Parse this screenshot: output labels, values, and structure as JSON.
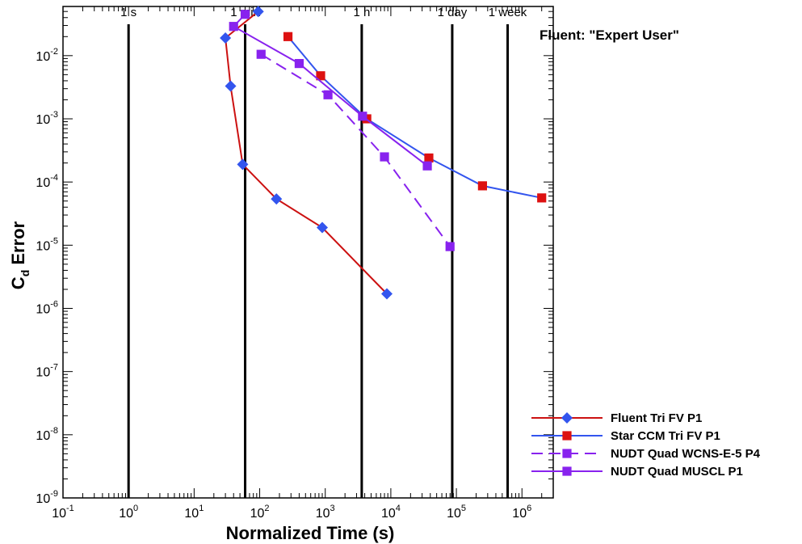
{
  "chart_data": {
    "type": "line",
    "title": "",
    "annotation": "Fluent: \"Expert User\"",
    "xlabel": "Normalized Time (s)",
    "ylabel": "C",
    "ylabel_sub": "d",
    "ylabel_suffix": " Error",
    "x_scale": "log",
    "y_scale": "log",
    "xlim": [
      0.1,
      3000000
    ],
    "ylim": [
      1e-09,
      0.06
    ],
    "x_ticks": [
      {
        "v": 0.1,
        "base": "10",
        "exp": "-1"
      },
      {
        "v": 1,
        "base": "10",
        "exp": "0"
      },
      {
        "v": 10,
        "base": "10",
        "exp": "1"
      },
      {
        "v": 100,
        "base": "10",
        "exp": "2"
      },
      {
        "v": 1000,
        "base": "10",
        "exp": "3"
      },
      {
        "v": 10000,
        "base": "10",
        "exp": "4"
      },
      {
        "v": 100000,
        "base": "10",
        "exp": "5"
      },
      {
        "v": 1000000,
        "base": "10",
        "exp": "6"
      }
    ],
    "y_ticks": [
      {
        "v": 1e-09,
        "base": "10",
        "exp": "-9"
      },
      {
        "v": 1e-08,
        "base": "10",
        "exp": "-8"
      },
      {
        "v": 1e-07,
        "base": "10",
        "exp": "-7"
      },
      {
        "v": 1e-06,
        "base": "10",
        "exp": "-6"
      },
      {
        "v": 1e-05,
        "base": "10",
        "exp": "-5"
      },
      {
        "v": 0.0001,
        "base": "10",
        "exp": "-4"
      },
      {
        "v": 0.001,
        "base": "10",
        "exp": "-3"
      },
      {
        "v": 0.01,
        "base": "10",
        "exp": "-2"
      }
    ],
    "reference_lines": [
      {
        "label": "1 s",
        "x": 1
      },
      {
        "label": "1 min",
        "x": 60
      },
      {
        "label": "1 h",
        "x": 3600
      },
      {
        "label": "1 day",
        "x": 86400
      },
      {
        "label": "1 week",
        "x": 604800
      }
    ],
    "legend_position": "bottom-right",
    "grid": false,
    "series": [
      {
        "name": "Fluent Tri FV P1",
        "line_color": "#cc1111",
        "marker_color": "#3355ee",
        "marker": "diamond",
        "dash": false,
        "points": [
          [
            95,
            0.05
          ],
          [
            30,
            0.019
          ],
          [
            36,
            0.0033
          ],
          [
            55,
            0.00019
          ],
          [
            180,
            5.4e-05
          ],
          [
            900,
            1.9e-05
          ],
          [
            8700,
            1.7e-06
          ]
        ]
      },
      {
        "name": "Star CCM Tri FV P1",
        "line_color": "#3355ee",
        "marker_color": "#dd1111",
        "marker": "square",
        "dash": false,
        "points": [
          [
            270,
            0.02
          ],
          [
            850,
            0.0048
          ],
          [
            4300,
            0.001
          ],
          [
            38000,
            0.00024
          ],
          [
            250000,
            8.7e-05
          ],
          [
            2000000,
            5.6e-05
          ]
        ]
      },
      {
        "name": "NUDT Quad WCNS-E-5 P4",
        "line_color": "#8822ee",
        "marker_color": "#8822ee",
        "marker": "square",
        "dash": true,
        "points": [
          [
            105,
            0.0105
          ],
          [
            1100,
            0.0024
          ],
          [
            8000,
            0.00025
          ],
          [
            80000,
            9.5e-06
          ]
        ]
      },
      {
        "name": "NUDT Quad MUSCL P1",
        "line_color": "#8822ee",
        "marker_color": "#8822ee",
        "marker": "square",
        "dash": false,
        "points": [
          [
            60,
            0.045
          ],
          [
            40,
            0.029
          ],
          [
            400,
            0.0075
          ],
          [
            3700,
            0.0011
          ],
          [
            36000,
            0.00018
          ]
        ]
      }
    ]
  }
}
